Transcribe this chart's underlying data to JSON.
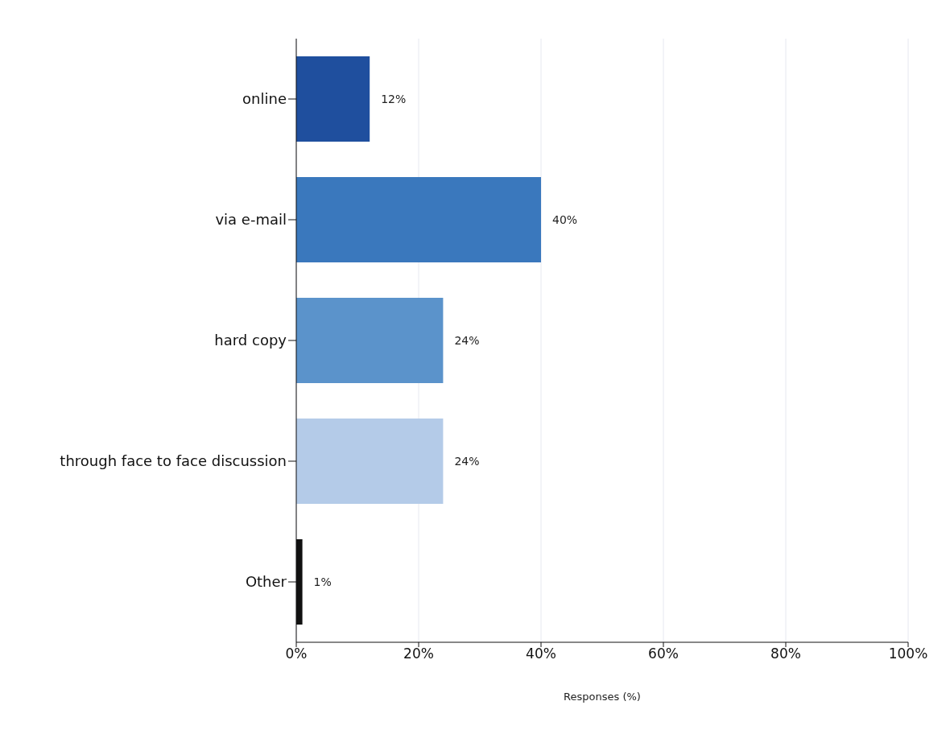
{
  "chart_data": {
    "type": "bar",
    "orientation": "horizontal",
    "categories": [
      "online",
      "via e-mail",
      "hard copy",
      "through face to face discussion",
      "Other"
    ],
    "values": [
      12,
      40,
      24,
      24,
      1
    ],
    "colors": [
      "#1f4f9e",
      "#3a78bd",
      "#5b93cb",
      "#b4cbe8",
      "#111111"
    ],
    "value_labels": [
      "12%",
      "40%",
      "24%",
      "24%",
      "1%"
    ],
    "xlim": [
      0,
      100
    ],
    "xticks": [
      {
        "value": 0,
        "label": "0%"
      },
      {
        "value": 20,
        "label": "20%"
      },
      {
        "value": 40,
        "label": "40%"
      },
      {
        "value": 60,
        "label": "60%"
      },
      {
        "value": 80,
        "label": "80%"
      },
      {
        "value": 100,
        "label": "100%"
      }
    ],
    "xlabel": "Responses (%)",
    "grid": "x",
    "legend": false
  }
}
